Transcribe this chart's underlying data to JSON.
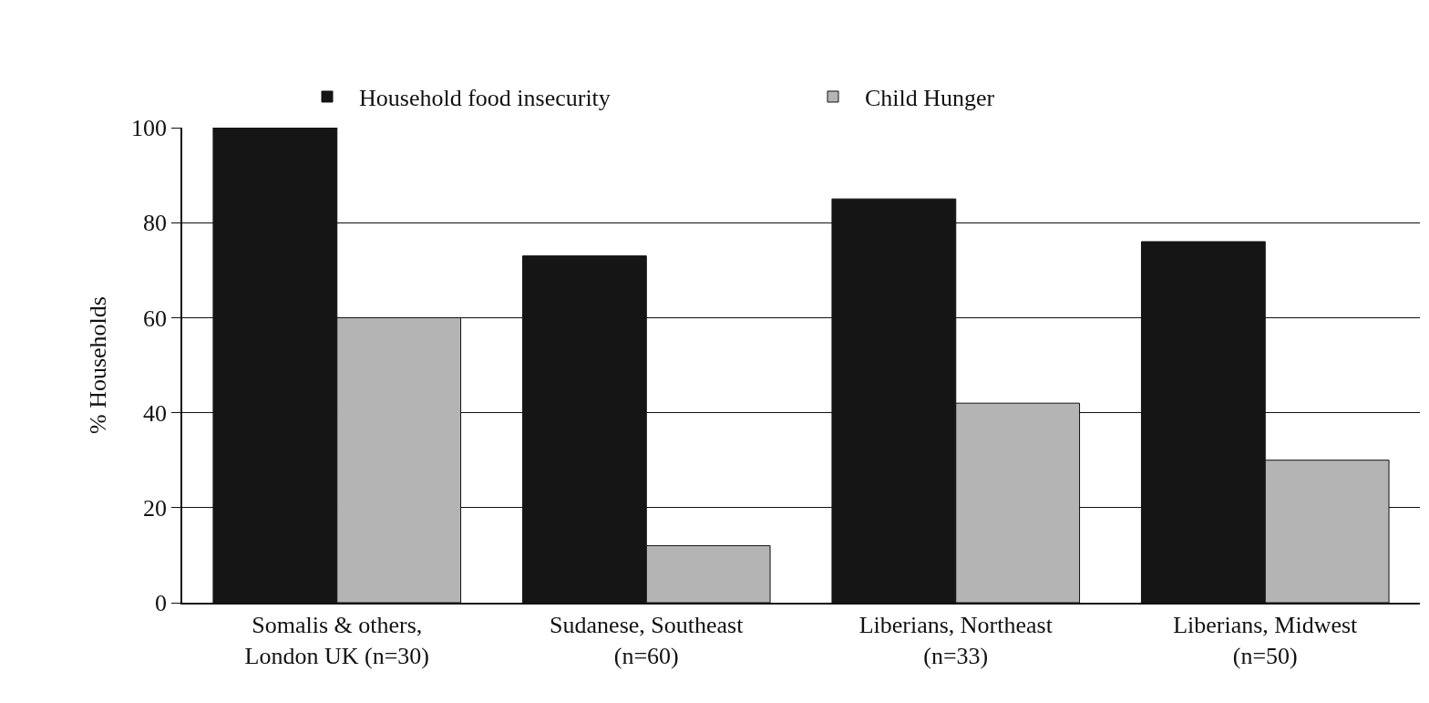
{
  "chart_data": {
    "type": "bar",
    "ylabel": "% Households",
    "categories": [
      "Somalis & others,\nLondon UK (n=30)",
      "Sudanese, Southeast\n(n=60)",
      "Liberians, Northeast\n(n=33)",
      "Liberians, Midwest\n(n=50)"
    ],
    "series": [
      {
        "name": "Household food insecurity",
        "color": "#151515",
        "values": [
          100,
          73,
          85,
          76
        ]
      },
      {
        "name": "Child Hunger",
        "color": "#b4b4b4",
        "values": [
          60,
          12,
          42,
          30
        ]
      }
    ],
    "ylim": [
      0,
      100
    ],
    "yticks": [
      0,
      20,
      40,
      60,
      80,
      100
    ],
    "grid": "y",
    "legend": "top"
  }
}
